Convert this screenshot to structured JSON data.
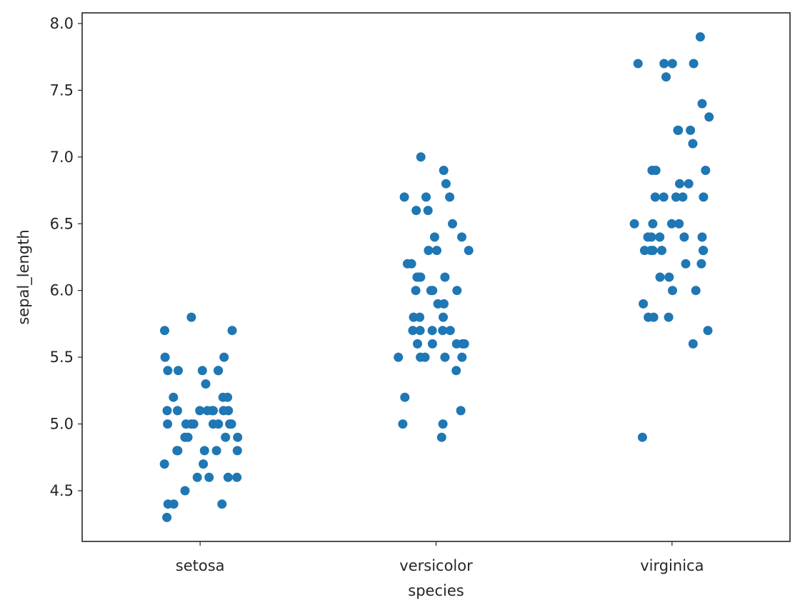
{
  "chart_data": {
    "type": "scatter",
    "subtype": "strip",
    "title": "",
    "xlabel": "species",
    "ylabel": "sepal_length",
    "categories": [
      "setosa",
      "versicolor",
      "virginica"
    ],
    "ylim": [
      4.12,
      8.08
    ],
    "yticks": [
      4.5,
      5.0,
      5.5,
      6.0,
      6.5,
      7.0,
      7.5,
      8.0
    ],
    "ytick_labels": [
      "4.5",
      "5.0",
      "5.5",
      "6.0",
      "6.5",
      "7.0",
      "7.5",
      "8.0"
    ],
    "grid": false,
    "marker_color": "#1f77b4",
    "points": [
      {
        "category": "setosa",
        "values": [
          5.1,
          4.9,
          4.7,
          4.6,
          5.0,
          5.4,
          4.6,
          5.0,
          4.4,
          4.9,
          5.4,
          4.8,
          4.8,
          4.3,
          5.8,
          5.7,
          5.4,
          5.1,
          5.7,
          5.1,
          5.4,
          5.1,
          4.6,
          5.1,
          4.8,
          5.0,
          5.0,
          5.2,
          5.2,
          4.7,
          4.8,
          5.4,
          5.2,
          5.5,
          4.9,
          5.0,
          5.5,
          4.9,
          4.4,
          5.1,
          5.0,
          4.5,
          4.4,
          5.0,
          5.1,
          4.8,
          5.1,
          4.6,
          5.3,
          5.0
        ]
      },
      {
        "category": "versicolor",
        "values": [
          7.0,
          6.4,
          6.9,
          5.5,
          6.5,
          5.7,
          6.3,
          4.9,
          6.6,
          5.2,
          5.0,
          5.9,
          6.0,
          6.1,
          5.6,
          6.7,
          5.6,
          5.8,
          6.2,
          5.6,
          5.9,
          6.1,
          6.3,
          6.1,
          6.4,
          6.6,
          6.8,
          6.7,
          6.0,
          5.7,
          5.5,
          5.5,
          5.8,
          6.0,
          5.4,
          6.0,
          6.7,
          6.3,
          5.6,
          5.5,
          5.5,
          6.1,
          5.8,
          5.0,
          5.6,
          5.7,
          5.7,
          6.2,
          5.1,
          5.7
        ]
      },
      {
        "category": "virginica",
        "values": [
          6.3,
          5.8,
          7.1,
          6.3,
          6.5,
          7.6,
          4.9,
          7.3,
          6.7,
          7.2,
          6.5,
          6.4,
          6.8,
          5.7,
          5.8,
          6.4,
          6.5,
          7.7,
          7.7,
          6.0,
          6.9,
          5.6,
          7.7,
          6.3,
          6.7,
          7.2,
          6.2,
          6.1,
          6.4,
          7.2,
          7.4,
          7.9,
          6.4,
          6.3,
          6.1,
          7.7,
          6.3,
          6.4,
          6.0,
          6.9,
          6.7,
          6.9,
          5.8,
          6.8,
          6.7,
          6.7,
          6.3,
          6.5,
          6.2,
          5.9
        ]
      }
    ]
  }
}
